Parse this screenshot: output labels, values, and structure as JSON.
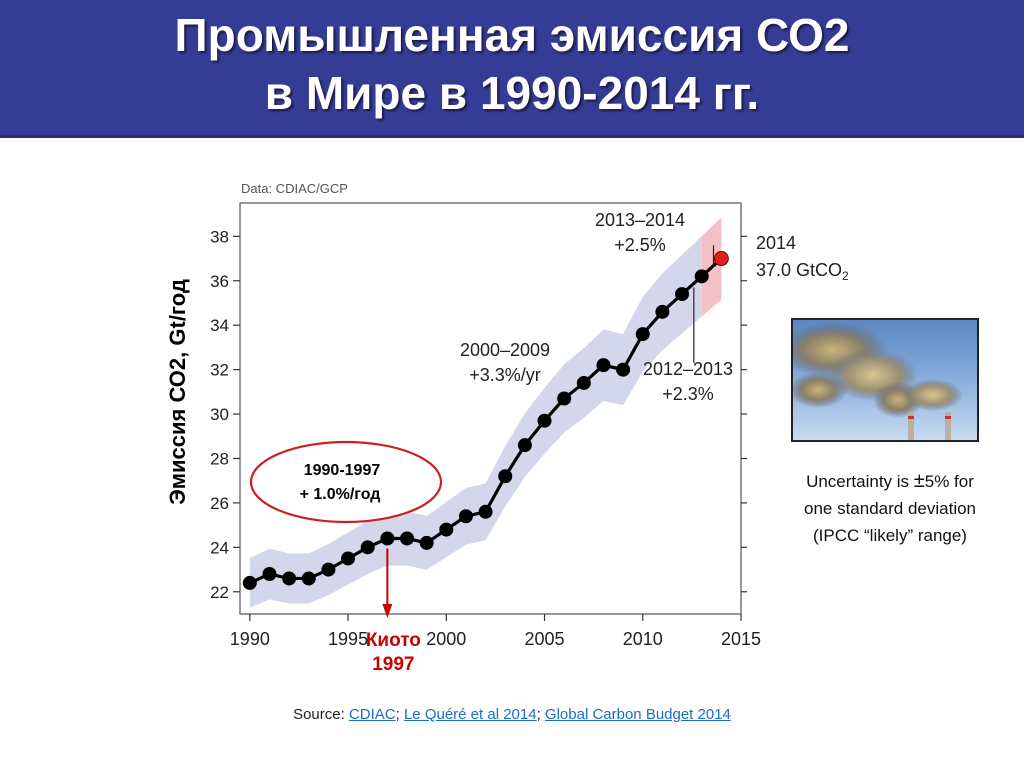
{
  "title": {
    "line1": "Промышленная эмиссия  СО2",
    "line2": "в Мире в 1990-2014 гг."
  },
  "colors": {
    "title_bg": "#353c95",
    "band": "#c9cde6",
    "line": "#000000",
    "point": "#000000",
    "last_point": "#e0201e",
    "last_band": "#f3b9bf",
    "annot_red": "#cc0000"
  },
  "chart_data": {
    "type": "line",
    "data_source_label": "Data: CDIAC/GCP",
    "ylabel": "Эмиссия  СО2, Gt/год",
    "xlim": [
      1989.5,
      2015
    ],
    "ylim": [
      21,
      39.5
    ],
    "xticks": [
      1990,
      1995,
      2000,
      2005,
      2010,
      2015
    ],
    "yticks": [
      22,
      24,
      26,
      28,
      30,
      32,
      34,
      36,
      38
    ],
    "x": [
      1990,
      1991,
      1992,
      1993,
      1994,
      1995,
      1996,
      1997,
      1998,
      1999,
      2000,
      2001,
      2002,
      2003,
      2004,
      2005,
      2006,
      2007,
      2008,
      2009,
      2010,
      2011,
      2012,
      2013,
      2014
    ],
    "y": [
      22.4,
      22.8,
      22.6,
      22.6,
      23.0,
      23.5,
      24.0,
      24.4,
      24.4,
      24.2,
      24.8,
      25.4,
      25.6,
      27.2,
      28.6,
      29.7,
      30.7,
      31.4,
      32.2,
      32.0,
      33.6,
      34.6,
      35.4,
      36.2,
      37.0
    ],
    "uncertainty_pct": 5,
    "annotations": [
      {
        "id": "a2000",
        "line1": "2000–2009",
        "line2": "+3.3%/yr"
      },
      {
        "id": "a2013",
        "line1": "2013–2014",
        "line2": "+2.5%"
      },
      {
        "id": "a2012",
        "line1": "2012–2013",
        "line2": "+2.3%"
      },
      {
        "id": "a2014",
        "line1": "2014",
        "line2": "37.0 GtCO",
        "sub": "2"
      }
    ],
    "ellipse_label": {
      "line1": "1990-1997",
      "line2": "+ 1.0%/год"
    },
    "kyoto": {
      "year": 1997,
      "line1": "Киото",
      "line2": "1997"
    }
  },
  "uncertainty_note": {
    "prefix": "Uncertainty is ",
    "pm": "±",
    "rest": "5% for",
    "line2": "one standard deviation",
    "line3": "(IPCC “likely” range)"
  },
  "source": {
    "label": "Source: ",
    "link1": "CDIAC",
    "sep1": "; ",
    "link2": "Le Quéré et al 2014",
    "sep2": "; ",
    "link3": "Global Carbon Budget 2014"
  },
  "photo_icon": "factory-smoke-photo"
}
